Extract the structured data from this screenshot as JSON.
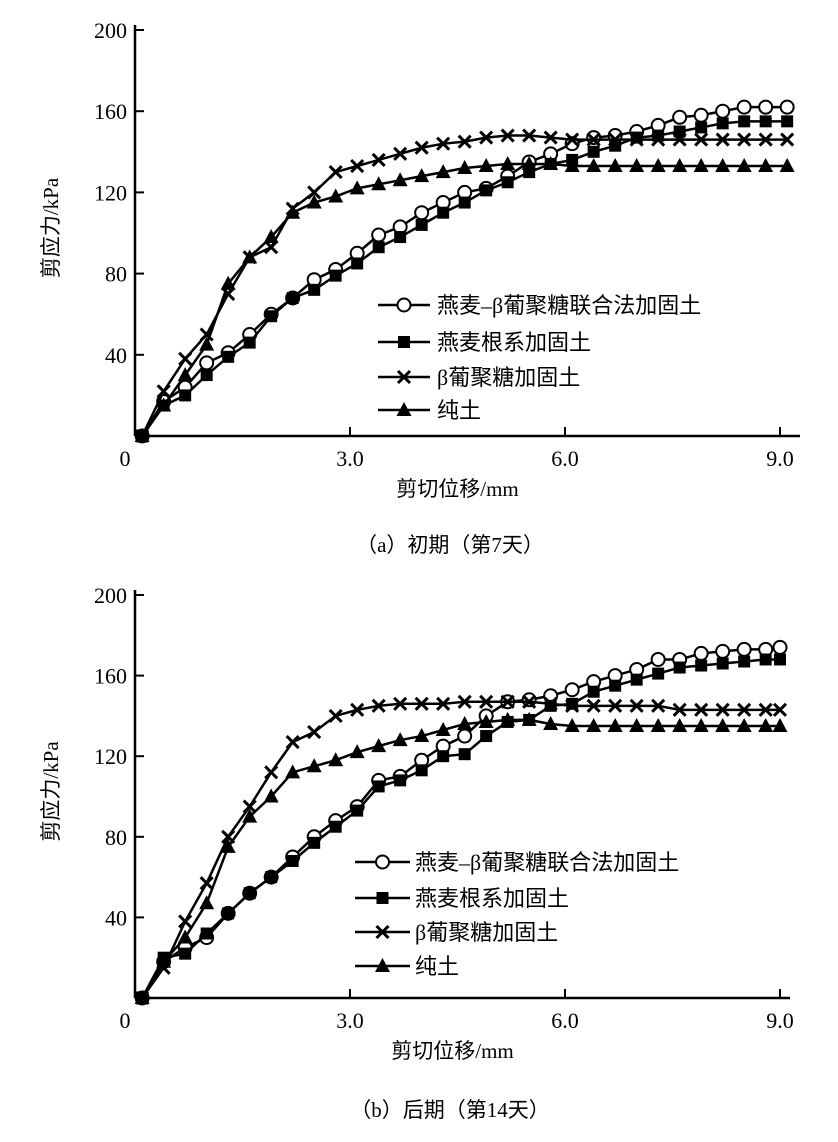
{
  "chart_data": [
    {
      "type": "line",
      "caption": "（a）初期（第7天）",
      "xlabel": "剪切位移/mm",
      "ylabel": "剪应力/kPa",
      "xlim": [
        0,
        9.2
      ],
      "ylim": [
        0,
        200
      ],
      "xticks": [
        "0",
        "3.0",
        "6.0",
        "9.0"
      ],
      "xtick_values": [
        0,
        3,
        6,
        9
      ],
      "yticks": [
        "40",
        "80",
        "120",
        "160",
        "200"
      ],
      "ytick_values": [
        40,
        80,
        120,
        160,
        200
      ],
      "legend_position": "center-right",
      "x": [
        0.1,
        0.4,
        0.7,
        1.0,
        1.3,
        1.6,
        1.9,
        2.2,
        2.5,
        2.8,
        3.1,
        3.4,
        3.7,
        4.0,
        4.3,
        4.6,
        4.9,
        5.2,
        5.5,
        5.8,
        6.1,
        6.4,
        6.7,
        7.0,
        7.3,
        7.6,
        7.9,
        8.2,
        8.5,
        8.8,
        9.1
      ],
      "series": [
        {
          "name": "燕麦–β葡聚糖联合法加固土",
          "marker": "circle",
          "values": [
            0,
            17,
            24,
            36,
            41,
            50,
            60,
            68,
            77,
            82,
            90,
            99,
            103,
            110,
            115,
            120,
            122,
            128,
            135,
            139,
            144,
            147,
            148,
            150,
            153,
            157,
            158,
            160,
            162,
            162,
            162
          ]
        },
        {
          "name": "燕麦根系加固土",
          "marker": "square",
          "values": [
            0,
            15,
            20,
            30,
            39,
            46,
            59,
            68,
            72,
            79,
            85,
            93,
            98,
            104,
            110,
            115,
            121,
            125,
            130,
            134,
            136,
            140,
            143,
            147,
            148,
            150,
            152,
            154,
            155,
            155,
            155
          ]
        },
        {
          "name": "β葡聚糖加固土",
          "marker": "cross",
          "values": [
            0,
            22,
            38,
            50,
            70,
            88,
            93,
            112,
            120,
            130,
            133,
            136,
            139,
            142,
            144,
            145,
            147,
            148,
            148,
            147,
            146,
            146,
            146,
            146,
            146,
            146,
            146,
            146,
            146,
            146,
            146
          ]
        },
        {
          "name": "纯土",
          "marker": "triangle",
          "values": [
            0,
            15,
            30,
            45,
            75,
            88,
            98,
            110,
            115,
            118,
            122,
            124,
            126,
            128,
            130,
            132,
            133,
            134,
            134,
            134,
            133,
            133,
            133,
            133,
            133,
            133,
            133,
            133,
            133,
            133,
            133
          ]
        }
      ]
    },
    {
      "type": "line",
      "caption": "（b）后期（第14天）",
      "xlabel": "剪切位移/mm",
      "ylabel": "剪应力/kPa",
      "xlim": [
        0,
        9.0
      ],
      "ylim": [
        0,
        200
      ],
      "xticks": [
        "0",
        "3.0",
        "6.0",
        "9.0"
      ],
      "xtick_values": [
        0,
        3,
        6,
        9
      ],
      "yticks": [
        "40",
        "80",
        "120",
        "160",
        "200"
      ],
      "ytick_values": [
        40,
        80,
        120,
        160,
        200
      ],
      "legend_position": "center-right",
      "x": [
        0.1,
        0.4,
        0.7,
        1.0,
        1.3,
        1.6,
        1.9,
        2.2,
        2.5,
        2.8,
        3.1,
        3.4,
        3.7,
        4.0,
        4.3,
        4.6,
        4.9,
        5.2,
        5.5,
        5.8,
        6.1,
        6.4,
        6.7,
        7.0,
        7.3,
        7.6,
        7.9,
        8.2,
        8.5,
        8.8,
        9.0
      ],
      "series": [
        {
          "name": "燕麦–β葡聚糖联合法加固土",
          "marker": "circle",
          "values": [
            0,
            18,
            25,
            30,
            42,
            52,
            60,
            70,
            80,
            88,
            95,
            108,
            110,
            118,
            125,
            130,
            140,
            147,
            148,
            150,
            153,
            157,
            160,
            163,
            168,
            168,
            171,
            172,
            173,
            173,
            174
          ]
        },
        {
          "name": "燕麦根系加固土",
          "marker": "square",
          "values": [
            0,
            20,
            22,
            32,
            42,
            52,
            60,
            68,
            77,
            85,
            93,
            105,
            108,
            113,
            120,
            121,
            130,
            137,
            138,
            145,
            146,
            152,
            155,
            158,
            161,
            164,
            165,
            166,
            167,
            168,
            168
          ]
        },
        {
          "name": "β葡聚糖加固土",
          "marker": "cross",
          "values": [
            0,
            15,
            38,
            57,
            80,
            95,
            112,
            127,
            132,
            140,
            143,
            145,
            146,
            146,
            146,
            147,
            147,
            147,
            147,
            146,
            145,
            145,
            145,
            145,
            145,
            143,
            143,
            143,
            143,
            143,
            143
          ]
        },
        {
          "name": "纯土",
          "marker": "triangle",
          "values": [
            0,
            18,
            30,
            47,
            75,
            90,
            100,
            112,
            115,
            118,
            122,
            125,
            128,
            130,
            133,
            136,
            137,
            138,
            138,
            136,
            135,
            135,
            135,
            135,
            135,
            135,
            135,
            135,
            135,
            135,
            135
          ]
        }
      ]
    }
  ]
}
